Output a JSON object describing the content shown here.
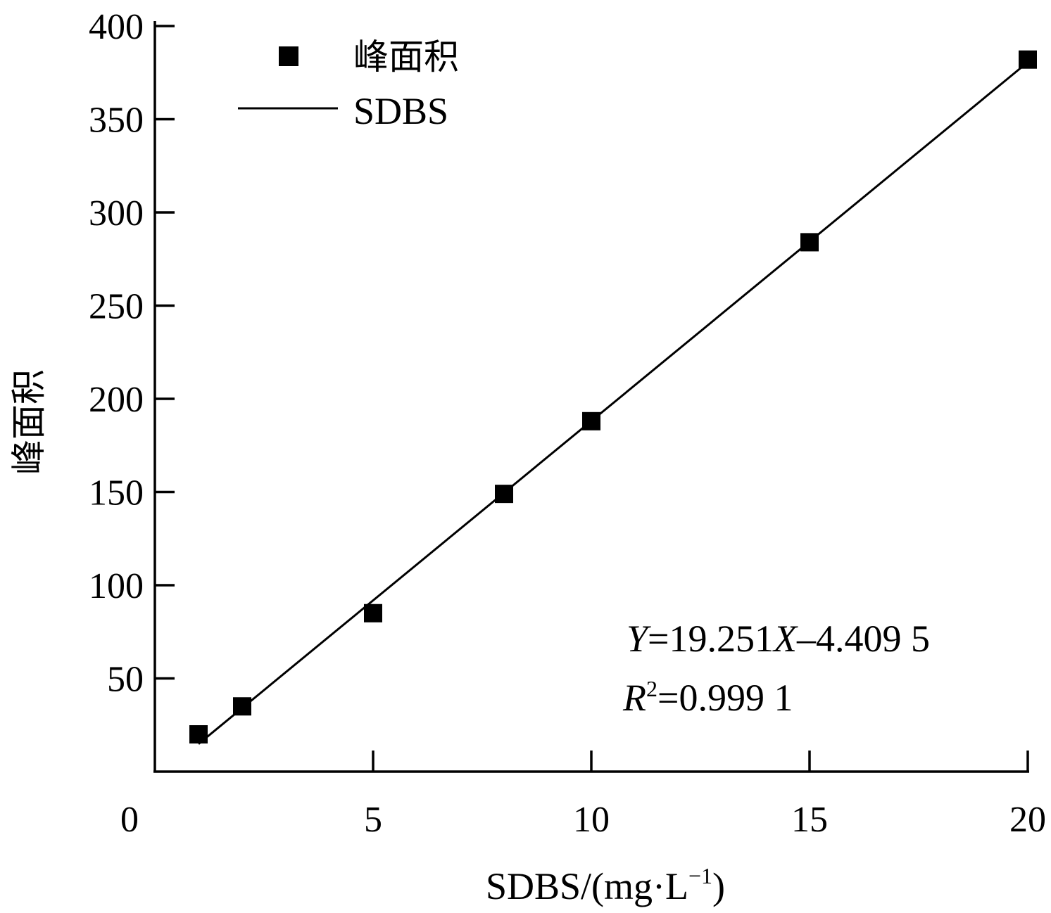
{
  "chart_data": {
    "type": "scatter",
    "title": "",
    "xlabel": "SDBS/(mg·L",
    "xlabel_sup": "−1",
    "xlabel_close": ")",
    "ylabel": "峰面积",
    "xlim": [
      0,
      20
    ],
    "ylim": [
      0,
      400
    ],
    "x_ticks": [
      0,
      5,
      10,
      15,
      20
    ],
    "x_tick_labels": [
      "0",
      "5",
      "10",
      "15",
      "20"
    ],
    "y_ticks": [
      50,
      100,
      150,
      200,
      250,
      300,
      350,
      400
    ],
    "y_tick_labels": [
      "50",
      "100",
      "150",
      "200",
      "250",
      "300",
      "350",
      "400"
    ],
    "grid": false,
    "legend_position": "top-left",
    "series": [
      {
        "name": "峰面积",
        "kind": "scatter",
        "marker": "square",
        "color": "#000000",
        "x": [
          1,
          2,
          5,
          8,
          10,
          15,
          20
        ],
        "y": [
          20,
          35,
          85,
          149,
          188,
          284,
          382
        ]
      },
      {
        "name": "SDBS",
        "kind": "line",
        "color": "#000000",
        "slope": 19.251,
        "intercept": -4.4095,
        "x_range": [
          1,
          20
        ]
      }
    ],
    "annotations": {
      "equation": {
        "y_var": "Y",
        "eq1": "=19.251",
        "x_var": "X",
        "eq2": "–4.409 5"
      },
      "r2": {
        "r_var": "R",
        "sup": "2",
        "value": "=0.999 1"
      }
    }
  }
}
